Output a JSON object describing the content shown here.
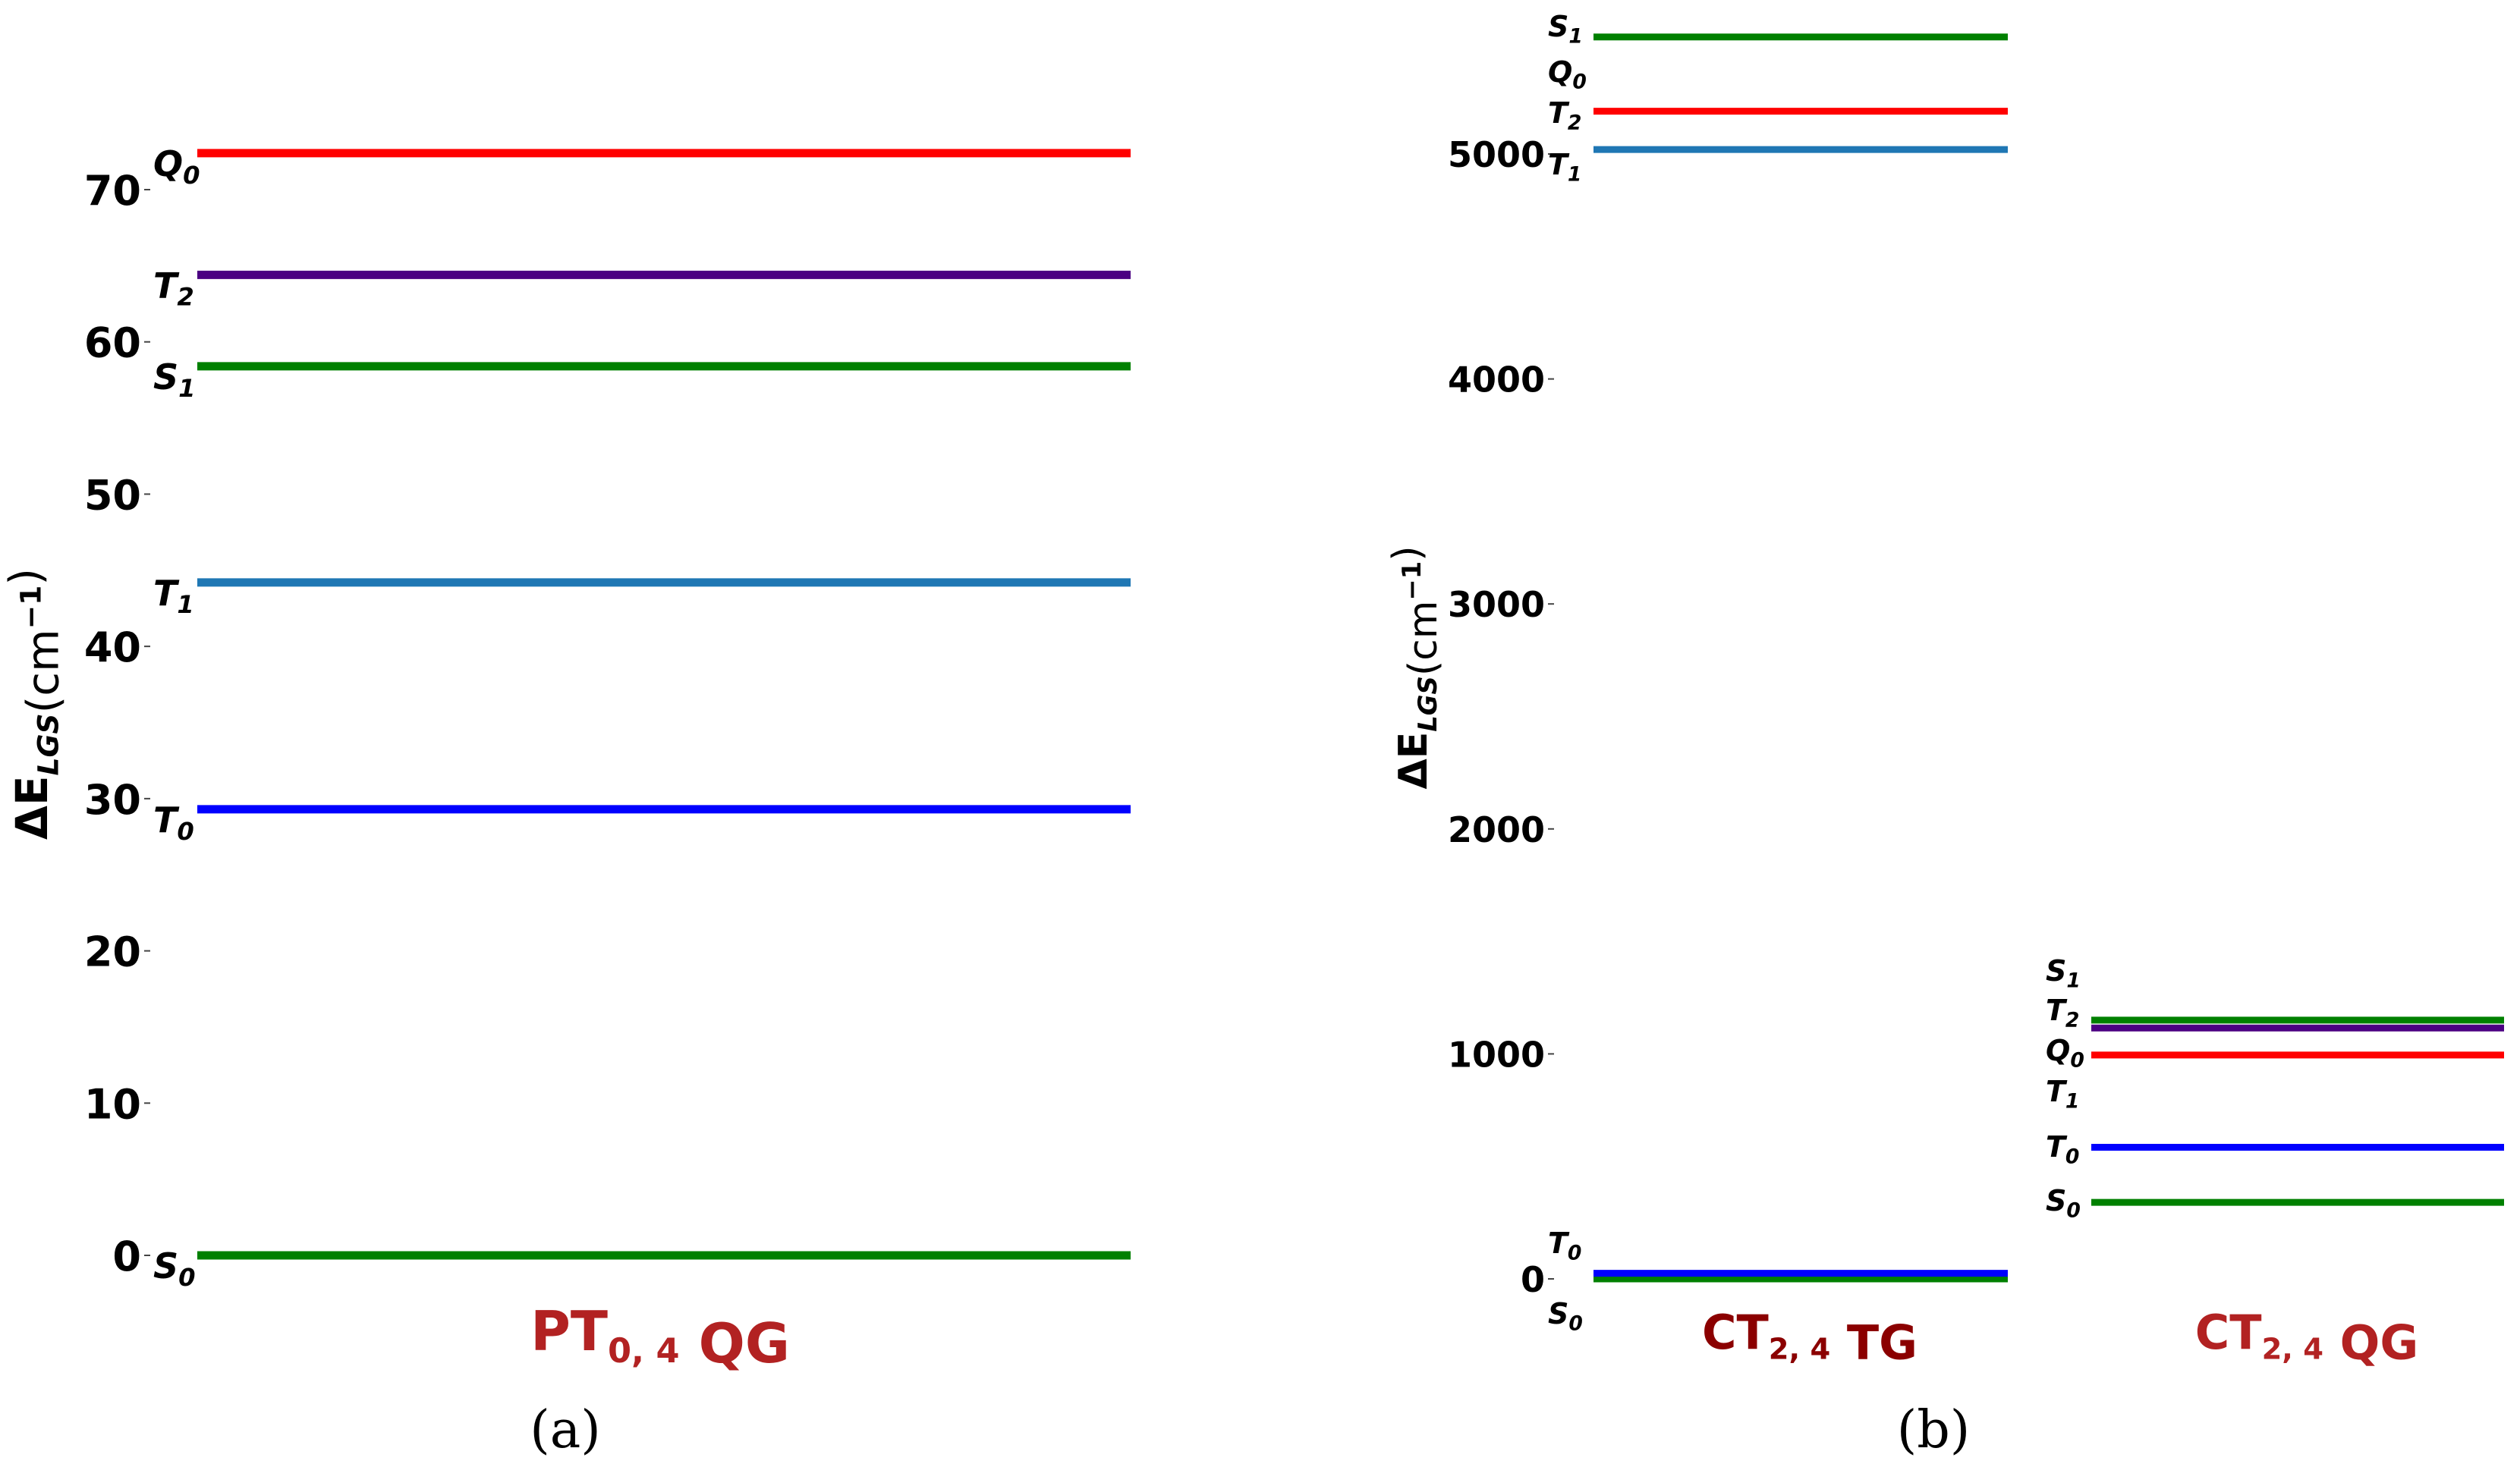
{
  "chart_data": [
    {
      "type": "energy-level",
      "panel": "(a)",
      "ylabel": "ΔE_LGS(cm⁻¹)",
      "ylim": [
        0,
        75
      ],
      "yticks": [
        0,
        10,
        20,
        30,
        40,
        50,
        60,
        70
      ],
      "columns": [
        {
          "label": "PT₀,₄ QG",
          "label_color": "#b22222",
          "levels": [
            {
              "state": "S₀",
              "value": 0,
              "color": "#008000"
            },
            {
              "state": "T₀",
              "value": 29.3,
              "color": "#0000ff"
            },
            {
              "state": "T₁",
              "value": 44.2,
              "color": "#1f77b4"
            },
            {
              "state": "S₁",
              "value": 58.4,
              "color": "#008000"
            },
            {
              "state": "T₂",
              "value": 64.4,
              "color": "#4b0082"
            },
            {
              "state": "Q₀",
              "value": 72.4,
              "color": "#ff0000"
            }
          ]
        }
      ]
    },
    {
      "type": "energy-level",
      "panel": "(b)",
      "ylabel": "ΔE_LGS(cm⁻¹)",
      "ylim": [
        0,
        5600
      ],
      "yticks": [
        0,
        1000,
        2000,
        3000,
        4000,
        5000
      ],
      "columns": [
        {
          "label": "CT₂,₄ TG",
          "label_color": "#8b0000",
          "levels": [
            {
              "state": "S₀",
              "value": 0,
              "color": "#008000"
            },
            {
              "state": "T₀",
              "value": 25,
              "color": "#0000ff"
            },
            {
              "state": "T₁",
              "value": 5020,
              "color": "#1f77b4"
            },
            {
              "state": "T₂",
              "value": 5190,
              "color": "#ff0000"
            },
            {
              "state": "Q₀",
              "value": 5190,
              "color": "#ff0000"
            },
            {
              "state": "S₁",
              "value": 5520,
              "color": "#008000"
            }
          ]
        },
        {
          "label": "CT₂,₄ QG",
          "label_color": "#b22222",
          "levels": [
            {
              "state": "S₀",
              "value": 340,
              "color": "#008000"
            },
            {
              "state": "T₀",
              "value": 585,
              "color": "#0000ff"
            },
            {
              "state": "T₁",
              "value": 995,
              "color": "#ff0000"
            },
            {
              "state": "Q₀",
              "value": 995,
              "color": "#ff0000"
            },
            {
              "state": "T₂",
              "value": 1115,
              "color": "#4b0082"
            },
            {
              "state": "S₁",
              "value": 1150,
              "color": "#008000"
            }
          ]
        }
      ]
    }
  ]
}
